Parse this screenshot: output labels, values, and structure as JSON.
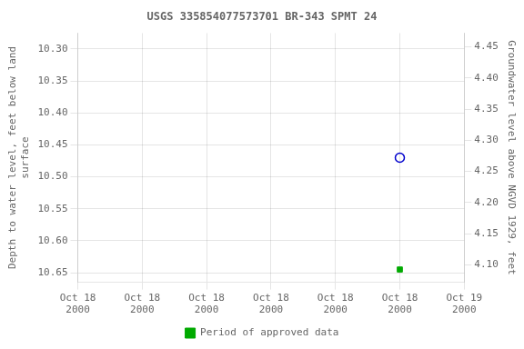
{
  "chart_data": {
    "type": "scatter",
    "title": "USGS 335854077573701 BR-343 SPMT 24",
    "x_label_ticks_note_free": null,
    "ylabel": "Depth to water level, feet below land\nsurface",
    "y2label": "Groundwater level above NGVD 1929, feet",
    "x": [
      5
    ],
    "series": [
      {
        "color": "#0000cc",
        "marker": "circle",
        "values": [
          10.47
        ]
      },
      {
        "name": "Period of approved data",
        "color": "#00aa00",
        "marker": "square",
        "values": [
          10.645
        ]
      }
    ],
    "xlim": [
      0,
      6
    ],
    "xticks": [
      {
        "value": 0,
        "label": "Oct 18\n2000"
      },
      {
        "value": 1,
        "label": "Oct 18\n2000"
      },
      {
        "value": 2,
        "label": "Oct 18\n2000"
      },
      {
        "value": 3,
        "label": "Oct 18\n2000"
      },
      {
        "value": 4,
        "label": "Oct 18\n2000"
      },
      {
        "value": 5,
        "label": "Oct 18\n2000"
      },
      {
        "value": 6,
        "label": "Oct 19\n2000"
      }
    ],
    "ylim": [
      10.665,
      10.275
    ],
    "yticks": [
      {
        "value": 10.3,
        "label": "10.30"
      },
      10.35,
      {
        "value": 10.4,
        "label": "10.40"
      },
      10.45,
      {
        "value": 10.5,
        "label": "10.50"
      },
      10.55,
      {
        "value": 10.6,
        "label": "10.60"
      },
      10.65
    ],
    "y2lim": [
      4.072,
      4.472
    ],
    "y2ticks": [
      {
        "value": 4.1,
        "label": "4.10"
      },
      4.15,
      {
        "value": 4.2,
        "label": "4.20"
      },
      4.25,
      {
        "value": 4.3,
        "label": "4.30"
      },
      4.35,
      {
        "value": 4.4,
        "label": "4.40"
      },
      4.45
    ],
    "grid": true,
    "legend": "bottom"
  }
}
